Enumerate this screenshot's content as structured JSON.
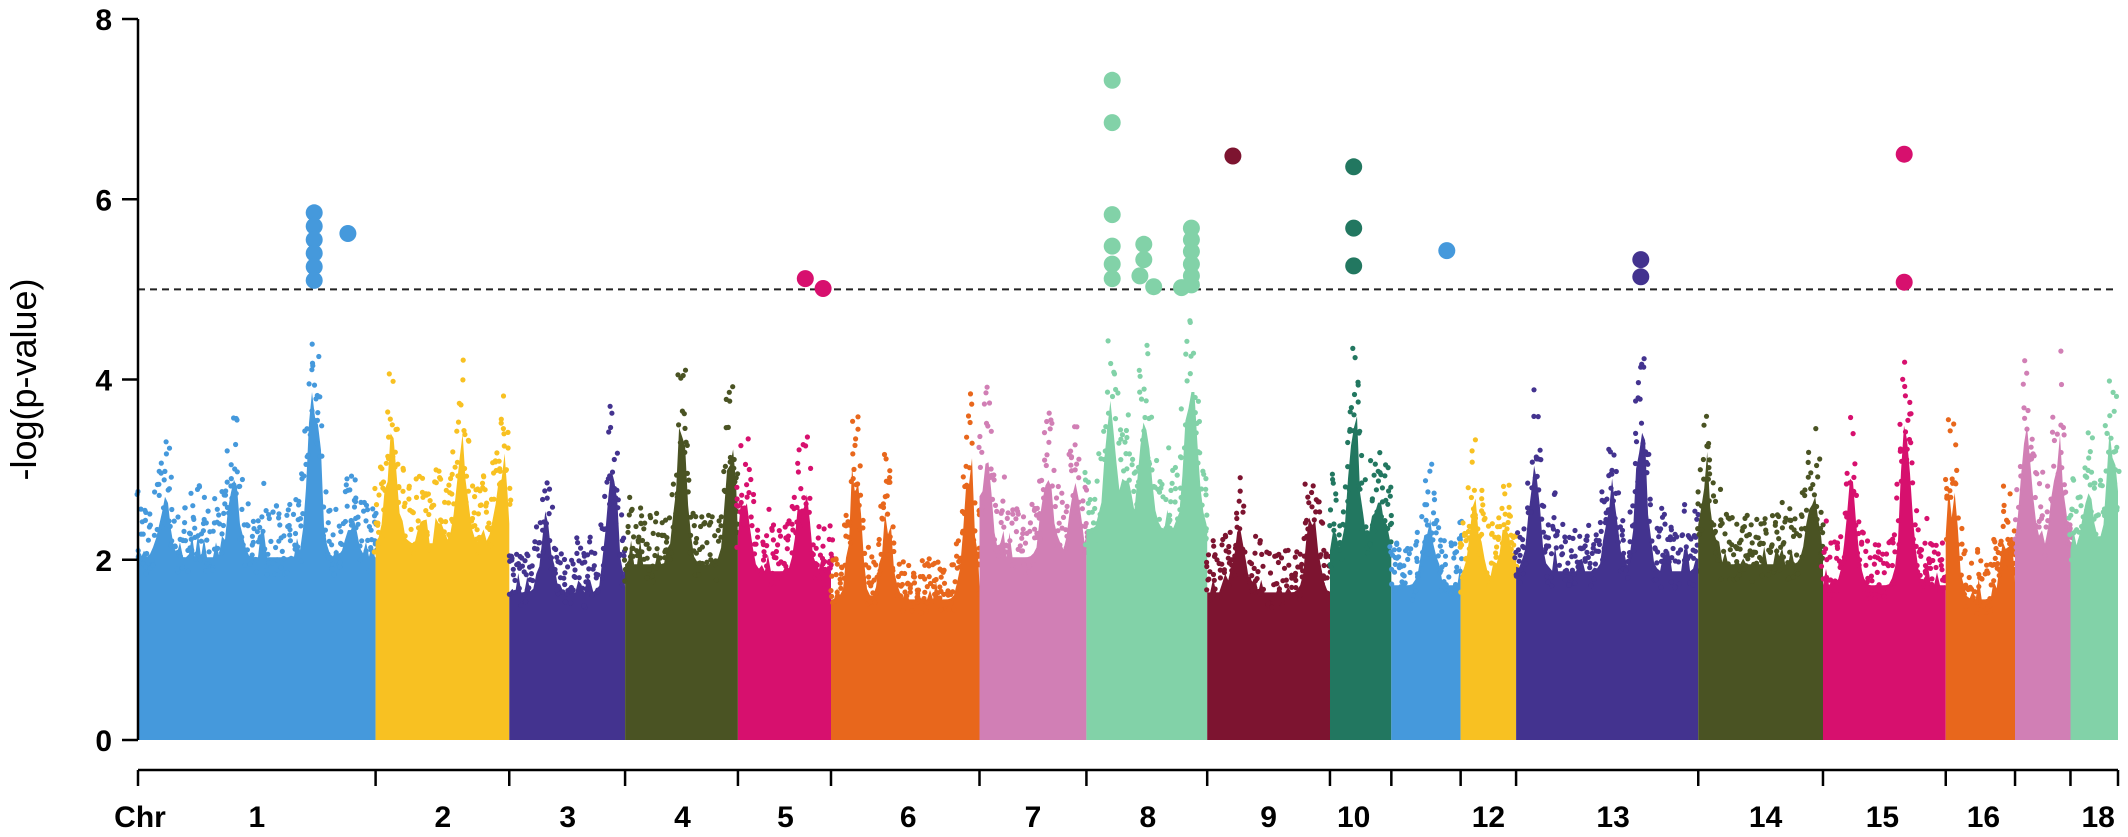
{
  "chart_data": {
    "type": "scatter",
    "subtype": "manhattan",
    "title": "",
    "xlabel": "Chr",
    "ylabel": "-log(p-value)",
    "ylim": [
      0,
      8
    ],
    "yticks": [
      0,
      2,
      4,
      6,
      8
    ],
    "threshold": 5,
    "grid": false,
    "legend": "none",
    "chromosomes": [
      {
        "chr": "1",
        "label": "1",
        "start": 0.0,
        "end": 0.12,
        "color": "#4599dc",
        "baseline": 2.6,
        "peaks": [
          [
            0.088,
            5.9
          ],
          [
            0.048,
            3.9
          ],
          [
            0.013,
            3.6
          ],
          [
            0.107,
            3.2
          ]
        ]
      },
      {
        "chr": "2",
        "label": "2",
        "start": 0.12,
        "end": 0.1875,
        "color": "#f8c122",
        "baseline": 2.8,
        "peaks": [
          [
            0.128,
            4.6
          ],
          [
            0.163,
            4.4
          ],
          [
            0.183,
            4.3
          ]
        ]
      },
      {
        "chr": "3",
        "label": "3",
        "start": 0.1875,
        "end": 0.246,
        "color": "#43338f",
        "baseline": 2.1,
        "peaks": [
          [
            0.239,
            4.3
          ],
          [
            0.206,
            3.3
          ]
        ]
      },
      {
        "chr": "4",
        "label": "4",
        "start": 0.246,
        "end": 0.303,
        "color": "#4a5323",
        "baseline": 2.5,
        "peaks": [
          [
            0.274,
            4.9
          ],
          [
            0.299,
            4.3
          ]
        ]
      },
      {
        "chr": "5",
        "label": "5",
        "start": 0.303,
        "end": 0.35,
        "color": "#d7106e",
        "baseline": 2.4,
        "peaks": [
          [
            0.335,
            3.9
          ],
          [
            0.306,
            3.7
          ]
        ]
      },
      {
        "chr": "6",
        "label": "6",
        "start": 0.35,
        "end": 0.425,
        "color": "#e8671c",
        "baseline": 2.0,
        "peaks": [
          [
            0.362,
            4.2
          ],
          [
            0.419,
            4.4
          ],
          [
            0.378,
            3.4
          ]
        ]
      },
      {
        "chr": "7",
        "label": "7",
        "start": 0.425,
        "end": 0.479,
        "color": "#d17fb5",
        "baseline": 2.6,
        "peaks": [
          [
            0.428,
            4.3
          ],
          [
            0.459,
            4.1
          ],
          [
            0.473,
            3.8
          ]
        ]
      },
      {
        "chr": "8",
        "label": "8",
        "start": 0.479,
        "end": 0.54,
        "color": "#82d2a8",
        "baseline": 3.0,
        "peaks": [
          [
            0.491,
            5.1
          ],
          [
            0.508,
            4.9
          ],
          [
            0.531,
            5.7
          ],
          [
            0.498,
            4.1
          ]
        ]
      },
      {
        "chr": "9",
        "label": "9",
        "start": 0.54,
        "end": 0.602,
        "color": "#7d1430",
        "baseline": 2.1,
        "peaks": [
          [
            0.556,
            3.2
          ],
          [
            0.593,
            3.6
          ]
        ]
      },
      {
        "chr": "10",
        "label": "10",
        "start": 0.602,
        "end": 0.633,
        "color": "#227760",
        "baseline": 2.7,
        "peaks": [
          [
            0.614,
            4.9
          ],
          [
            0.626,
            3.7
          ]
        ]
      },
      {
        "chr": "11",
        "label": "",
        "start": 0.633,
        "end": 0.668,
        "color": "#4599dc",
        "baseline": 2.2,
        "peaks": [
          [
            0.651,
            3.3
          ]
        ]
      },
      {
        "chr": "12",
        "label": "12",
        "start": 0.668,
        "end": 0.696,
        "color": "#f8c122",
        "baseline": 2.3,
        "peaks": [
          [
            0.675,
            3.5
          ],
          [
            0.69,
            3.2
          ]
        ]
      },
      {
        "chr": "13",
        "label": "13",
        "start": 0.696,
        "end": 0.788,
        "color": "#43338f",
        "baseline": 2.4,
        "peaks": [
          [
            0.759,
            4.8
          ],
          [
            0.705,
            4.1
          ],
          [
            0.744,
            3.8
          ]
        ]
      },
      {
        "chr": "14",
        "label": "14",
        "start": 0.788,
        "end": 0.851,
        "color": "#4a5323",
        "baseline": 2.5,
        "peaks": [
          [
            0.792,
            4.2
          ],
          [
            0.845,
            3.9
          ]
        ]
      },
      {
        "chr": "15",
        "label": "15",
        "start": 0.851,
        "end": 0.913,
        "color": "#d7106e",
        "baseline": 2.2,
        "peaks": [
          [
            0.893,
            4.8
          ],
          [
            0.865,
            3.8
          ]
        ]
      },
      {
        "chr": "16",
        "label": "16",
        "start": 0.913,
        "end": 0.948,
        "color": "#e8671c",
        "baseline": 2.0,
        "peaks": [
          [
            0.916,
            3.9
          ],
          [
            0.943,
            3.2
          ]
        ]
      },
      {
        "chr": "17",
        "label": "",
        "start": 0.948,
        "end": 0.976,
        "color": "#d17fb5",
        "baseline": 2.7,
        "peaks": [
          [
            0.954,
            4.6
          ],
          [
            0.969,
            4.5
          ]
        ]
      },
      {
        "chr": "18",
        "label": "18",
        "start": 0.976,
        "end": 1.0,
        "color": "#82d2a8",
        "baseline": 2.7,
        "peaks": [
          [
            0.997,
            4.7
          ],
          [
            0.985,
            3.6
          ]
        ]
      }
    ],
    "chromosome_label_positions": [
      {
        "label": "1",
        "pos": 0.06
      },
      {
        "label": "2",
        "pos": 0.154
      },
      {
        "label": "3",
        "pos": 0.217
      },
      {
        "label": "4",
        "pos": 0.275
      },
      {
        "label": "5",
        "pos": 0.327
      },
      {
        "label": "6",
        "pos": 0.389
      },
      {
        "label": "7",
        "pos": 0.452
      },
      {
        "label": "8",
        "pos": 0.51
      },
      {
        "label": "9",
        "pos": 0.571
      },
      {
        "label": "10",
        "pos": 0.614
      },
      {
        "label": "12",
        "pos": 0.682
      },
      {
        "label": "13",
        "pos": 0.745
      },
      {
        "label": "14",
        "pos": 0.822
      },
      {
        "label": "15",
        "pos": 0.881
      },
      {
        "label": "16",
        "pos": 0.932
      },
      {
        "label": "18",
        "pos": 0.99
      }
    ],
    "significant_points": [
      {
        "chr": "1",
        "pos": 0.089,
        "y": 5.85,
        "color": "#4599dc"
      },
      {
        "chr": "1",
        "pos": 0.089,
        "y": 5.7,
        "color": "#4599dc"
      },
      {
        "chr": "1",
        "pos": 0.089,
        "y": 5.55,
        "color": "#4599dc"
      },
      {
        "chr": "1",
        "pos": 0.089,
        "y": 5.4,
        "color": "#4599dc"
      },
      {
        "chr": "1",
        "pos": 0.089,
        "y": 5.25,
        "color": "#4599dc"
      },
      {
        "chr": "1",
        "pos": 0.089,
        "y": 5.1,
        "color": "#4599dc"
      },
      {
        "chr": "1",
        "pos": 0.106,
        "y": 5.62,
        "color": "#4599dc"
      },
      {
        "chr": "5",
        "pos": 0.337,
        "y": 5.12,
        "color": "#d7106e"
      },
      {
        "chr": "5",
        "pos": 0.346,
        "y": 5.01,
        "color": "#d7106e"
      },
      {
        "chr": "8",
        "pos": 0.492,
        "y": 7.32,
        "color": "#82d2a8"
      },
      {
        "chr": "8",
        "pos": 0.492,
        "y": 6.85,
        "color": "#82d2a8"
      },
      {
        "chr": "8",
        "pos": 0.492,
        "y": 5.83,
        "color": "#82d2a8"
      },
      {
        "chr": "8",
        "pos": 0.492,
        "y": 5.48,
        "color": "#82d2a8"
      },
      {
        "chr": "8",
        "pos": 0.492,
        "y": 5.28,
        "color": "#82d2a8"
      },
      {
        "chr": "8",
        "pos": 0.492,
        "y": 5.12,
        "color": "#82d2a8"
      },
      {
        "chr": "8",
        "pos": 0.508,
        "y": 5.5,
        "color": "#82d2a8"
      },
      {
        "chr": "8",
        "pos": 0.508,
        "y": 5.33,
        "color": "#82d2a8"
      },
      {
        "chr": "8",
        "pos": 0.506,
        "y": 5.15,
        "color": "#82d2a8"
      },
      {
        "chr": "8",
        "pos": 0.513,
        "y": 5.03,
        "color": "#82d2a8"
      },
      {
        "chr": "8",
        "pos": 0.527,
        "y": 5.02,
        "color": "#82d2a8"
      },
      {
        "chr": "8",
        "pos": 0.532,
        "y": 5.68,
        "color": "#82d2a8"
      },
      {
        "chr": "8",
        "pos": 0.532,
        "y": 5.55,
        "color": "#82d2a8"
      },
      {
        "chr": "8",
        "pos": 0.532,
        "y": 5.42,
        "color": "#82d2a8"
      },
      {
        "chr": "8",
        "pos": 0.532,
        "y": 5.28,
        "color": "#82d2a8"
      },
      {
        "chr": "8",
        "pos": 0.532,
        "y": 5.15,
        "color": "#82d2a8"
      },
      {
        "chr": "8",
        "pos": 0.532,
        "y": 5.05,
        "color": "#82d2a8"
      },
      {
        "chr": "9",
        "pos": 0.553,
        "y": 6.48,
        "color": "#7d1430"
      },
      {
        "chr": "10",
        "pos": 0.614,
        "y": 6.36,
        "color": "#227760"
      },
      {
        "chr": "10",
        "pos": 0.614,
        "y": 5.68,
        "color": "#227760"
      },
      {
        "chr": "10",
        "pos": 0.614,
        "y": 5.26,
        "color": "#227760"
      },
      {
        "chr": "11",
        "pos": 0.661,
        "y": 5.43,
        "color": "#4599dc"
      },
      {
        "chr": "13",
        "pos": 0.759,
        "y": 5.33,
        "color": "#43338f"
      },
      {
        "chr": "13",
        "pos": 0.759,
        "y": 5.14,
        "color": "#43338f"
      },
      {
        "chr": "15",
        "pos": 0.892,
        "y": 6.5,
        "color": "#d7106e"
      },
      {
        "chr": "15",
        "pos": 0.892,
        "y": 5.08,
        "color": "#d7106e"
      }
    ]
  }
}
